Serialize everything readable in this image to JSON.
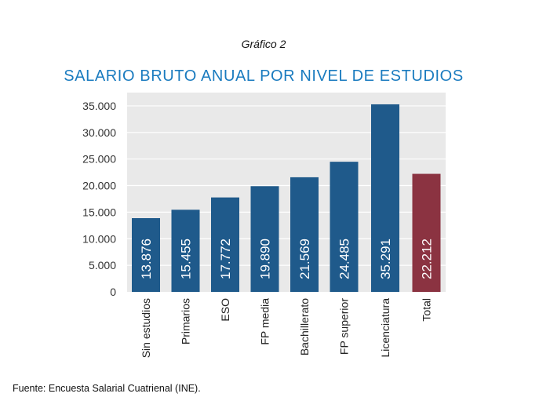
{
  "figure_label": "Gráfico 2",
  "source_note": "Fuente: Encuesta Salarial Cuatrienal (INE).",
  "colors": {
    "title": "#1a7bbf",
    "bar": "#1f5a8b",
    "highlight": "#8b3341",
    "plot_bg": "#e9e9e9",
    "grid": "#ffffff"
  },
  "chart_data": {
    "type": "bar",
    "title": "SALARIO BRUTO ANUAL POR NIVEL DE ESTUDIOS",
    "xlabel": "",
    "ylabel": "",
    "ylim": [
      0,
      35000
    ],
    "yticks": [
      0,
      5000,
      10000,
      15000,
      20000,
      25000,
      30000,
      35000
    ],
    "ytick_labels": [
      "0",
      "5.000",
      "10.000",
      "15.000",
      "20.000",
      "25.000",
      "30.000",
      "35.000"
    ],
    "grid": true,
    "categories": [
      "Sin estudios",
      "Primarios",
      "ESO",
      "FP media",
      "Bachillerato",
      "FP superior",
      "Licenciatura",
      "Total"
    ],
    "values": [
      13876,
      15455,
      17772,
      19890,
      21569,
      24485,
      35291,
      22212
    ],
    "value_labels": [
      "13.876",
      "15.455",
      "17.772",
      "19.890",
      "21.569",
      "24.485",
      "35.291",
      "22.212"
    ],
    "highlight_category": "Total"
  }
}
